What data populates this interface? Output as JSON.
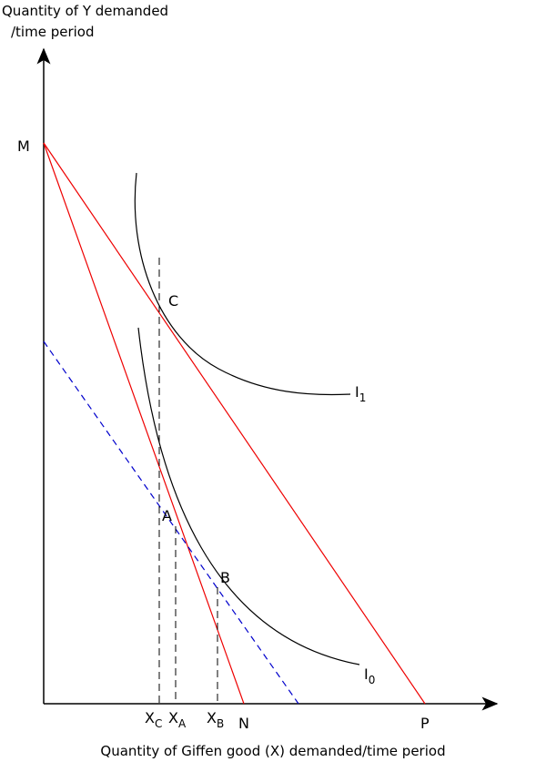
{
  "axes": {
    "y_label": [
      "Quantity of Y demanded",
      "/time period"
    ],
    "x_label": "Quantity of Giffen good (X) demanded/time period"
  },
  "points": {
    "M": "M",
    "C": "C",
    "A": "A",
    "B": "B",
    "N": "N",
    "P": "P"
  },
  "x_marks": [
    {
      "main": "X",
      "sub": "C"
    },
    {
      "main": "X",
      "sub": "A"
    },
    {
      "main": "X",
      "sub": "B"
    }
  ],
  "curves": [
    {
      "main": "I",
      "sub": "1"
    },
    {
      "main": "I",
      "sub": "0"
    }
  ]
}
